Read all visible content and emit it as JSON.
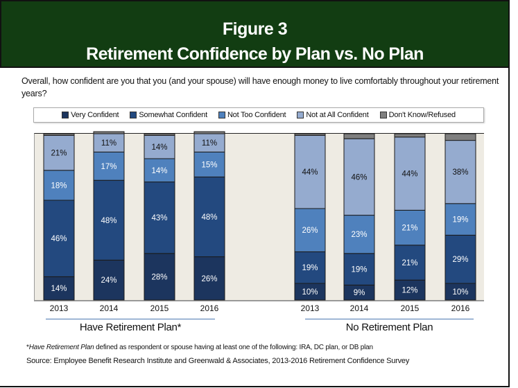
{
  "header": {
    "line1": "Figure 3",
    "line2": "Retirement Confidence by Plan vs. No Plan"
  },
  "question": "Overall, how confident are you that you (and your spouse) will have enough money to live comfortably throughout your retirement years?",
  "footnote": {
    "star": "*",
    "italic": "Have Retirement Plan",
    "rest": " defined as respondent or spouse having at least one of the following: IRA, DC plan, or DB plan"
  },
  "source": "Source:  Employee Benefit Research Institute and Greenwald & Associates, 2013-2016 Retirement Confidence Survey",
  "chart_data": {
    "type": "bar",
    "stacked": true,
    "title": "Retirement Confidence by Plan vs. No Plan",
    "ylim": [
      0,
      100
    ],
    "legend_position": "top",
    "series": [
      {
        "name": "Very Confident",
        "color": "#1c355e"
      },
      {
        "name": "Somewhat Confident",
        "color": "#23497f"
      },
      {
        "name": "Not Too Confident",
        "color": "#4f81bd"
      },
      {
        "name": "Not at All Confident",
        "color": "#95abcf"
      },
      {
        "name": "Don't Know/Refused",
        "color": "#7f7f7f"
      }
    ],
    "groups": [
      {
        "label": "Have Retirement Plan*",
        "categories": [
          "2013",
          "2014",
          "2015",
          "2016"
        ],
        "values": [
          [
            14,
            46,
            18,
            21,
            1
          ],
          [
            24,
            48,
            17,
            11,
            0
          ],
          [
            28,
            43,
            14,
            14,
            1
          ],
          [
            26,
            48,
            15,
            11,
            0
          ]
        ]
      },
      {
        "label": "No Retirement Plan",
        "categories": [
          "2013",
          "2014",
          "2015",
          "2016"
        ],
        "values": [
          [
            10,
            19,
            26,
            44,
            1
          ],
          [
            9,
            19,
            23,
            46,
            3
          ],
          [
            12,
            21,
            21,
            44,
            2
          ],
          [
            10,
            29,
            19,
            38,
            4
          ]
        ]
      }
    ]
  }
}
